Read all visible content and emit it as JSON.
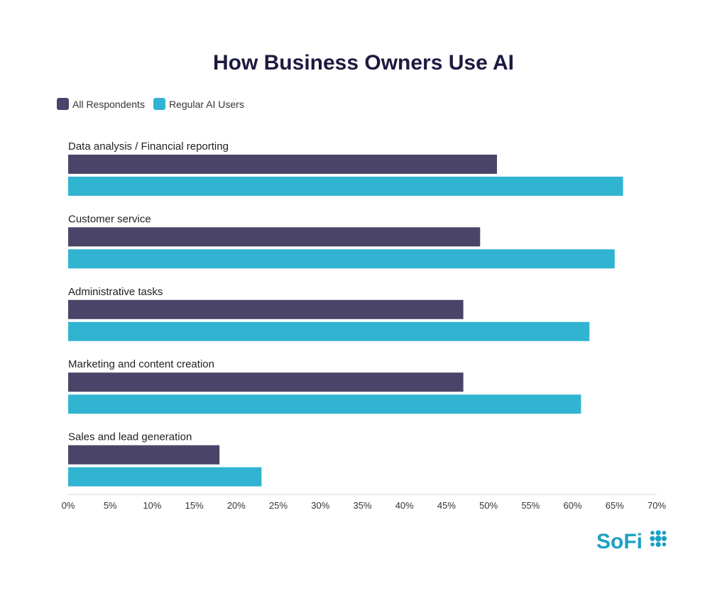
{
  "chart_data": {
    "type": "bar",
    "orientation": "horizontal",
    "title": "How Business Owners Use AI",
    "categories": [
      "Data analysis / Financial reporting",
      "Customer service",
      "Administrative tasks",
      "Marketing and content creation",
      "Sales and lead generation"
    ],
    "series": [
      {
        "name": "All Respondents",
        "color": "#4a4468",
        "values": [
          51,
          49,
          47,
          47,
          18
        ]
      },
      {
        "name": "Regular AI Users",
        "color": "#31b4d2",
        "values": [
          66,
          65,
          62,
          61,
          23
        ]
      }
    ],
    "xlim": [
      0,
      70
    ],
    "xticks": [
      0,
      5,
      10,
      15,
      20,
      25,
      30,
      35,
      40,
      45,
      50,
      55,
      60,
      65,
      70
    ],
    "tick_suffix": "%",
    "legend_position": "top-left",
    "grid": false
  },
  "brand": {
    "logo_text": "SoFi",
    "logo_color": "#1ca0c4",
    "logo_icon": "dot-grid-icon"
  }
}
